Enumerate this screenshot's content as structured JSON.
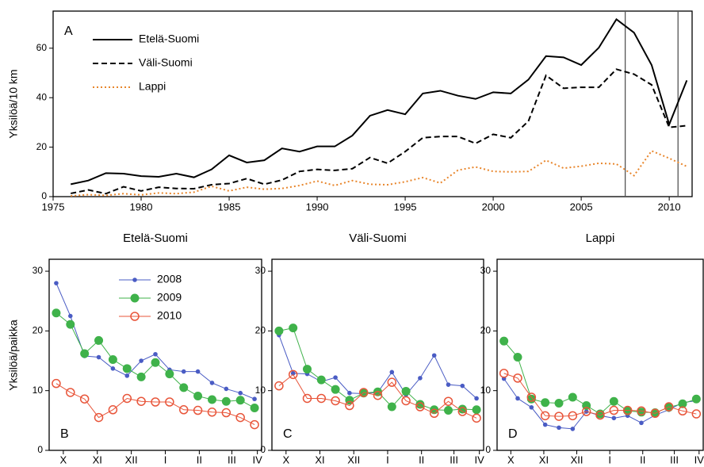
{
  "chart_data": [
    {
      "type": "line",
      "panel_label": "A",
      "y_label": "Yksilöä/10 km",
      "legend": "upper left",
      "x": [
        1976,
        1977,
        1978,
        1979,
        1980,
        1981,
        1982,
        1983,
        1984,
        1985,
        1986,
        1987,
        1988,
        1989,
        1990,
        1991,
        1992,
        1993,
        1994,
        1995,
        1996,
        1997,
        1998,
        1999,
        2000,
        2001,
        2002,
        2003,
        2004,
        2005,
        2006,
        2007,
        2008,
        2009,
        2010,
        2011
      ],
      "xlim": [
        1975,
        2011.3
      ],
      "xticks": [
        1975,
        1980,
        1985,
        1990,
        1995,
        2000,
        2005,
        2010
      ],
      "ylim": [
        0,
        75
      ],
      "yticks": [
        0,
        20,
        40,
        60
      ],
      "vlines": [
        2007.5,
        2010.5
      ],
      "series": [
        {
          "name": "Etelä-Suomi",
          "color": "#000000",
          "dash": "solid",
          "values": [
            5,
            6.5,
            9.5,
            9.3,
            8.3,
            8,
            9.3,
            7.8,
            11,
            16.7,
            13.8,
            14.7,
            19.5,
            18.2,
            20.3,
            20.3,
            24.7,
            32.7,
            35,
            33.3,
            41.7,
            42.8,
            40.8,
            39.5,
            42.2,
            41.7,
            47.3,
            56.8,
            56.3,
            53.2,
            60.2,
            71.7,
            66.3,
            53.2,
            29.2,
            47
          ]
        },
        {
          "name": "Väli-Suomi",
          "color": "#000000",
          "dash": "dashed",
          "values": [
            1.3,
            2.7,
            1.2,
            4,
            2.3,
            3.8,
            3.3,
            3.2,
            4.8,
            5.3,
            7.3,
            5,
            6.7,
            10.2,
            11,
            10.6,
            11.3,
            15.8,
            13.5,
            18.2,
            23.8,
            24.3,
            24.3,
            21.5,
            25.2,
            23.8,
            30.5,
            49,
            43.8,
            44.2,
            44.2,
            51.5,
            49.5,
            45.2,
            28,
            28.7
          ]
        },
        {
          "name": "Lappi",
          "color": "#e8862c",
          "dash": "dotted",
          "values": [
            0.3,
            0.8,
            0.5,
            1.2,
            0.7,
            1.5,
            1.2,
            1.8,
            4.2,
            2.3,
            3.8,
            3,
            3.3,
            4.5,
            6.3,
            4.5,
            6.5,
            5,
            4.8,
            6,
            7.7,
            5.5,
            10.7,
            12,
            10.2,
            10,
            10.2,
            14.7,
            11.5,
            12.3,
            13.5,
            13.2,
            8.5,
            18.5,
            15.5,
            12.2
          ]
        }
      ]
    },
    {
      "type": "line",
      "title": "Etelä-Suomi",
      "panel_label": "B",
      "y_label": "Yksilöä/paikka",
      "legend": "upper center",
      "x": [
        0,
        1,
        2,
        3,
        4,
        5,
        6,
        7,
        8,
        9,
        10,
        11,
        12,
        13,
        14
      ],
      "xlim": [
        -0.5,
        14.5
      ],
      "xticks": [
        {
          "value": 0.5,
          "label": "X"
        },
        {
          "value": 2.9,
          "label": "XI"
        },
        {
          "value": 5.3,
          "label": "XII"
        },
        {
          "value": 7.7,
          "label": "I"
        },
        {
          "value": 10.1,
          "label": "II"
        },
        {
          "value": 12.4,
          "label": "III"
        },
        {
          "value": 14.2,
          "label": "IV"
        }
      ],
      "ylim": [
        0,
        32
      ],
      "yticks": [
        0,
        10,
        20,
        30
      ],
      "series": [
        {
          "name": "2008",
          "color": "#4a5cc4",
          "marker": "dot",
          "values": [
            28,
            22.5,
            15.8,
            15.6,
            13.7,
            12.5,
            15,
            16.1,
            13.5,
            13.2,
            13.2,
            11.3,
            10.3,
            9.6,
            8.6
          ]
        },
        {
          "name": "2009",
          "color": "#3fb24a",
          "marker": "filled",
          "values": [
            23,
            21.1,
            16.2,
            18.4,
            15.2,
            13.7,
            12.3,
            14.7,
            12.8,
            10.5,
            9.1,
            8.5,
            8.2,
            8.4,
            7.1
          ]
        },
        {
          "name": "2010",
          "color": "#e8553a",
          "marker": "hollow",
          "values": [
            11.2,
            9.7,
            8.6,
            5.5,
            6.8,
            8.7,
            8.2,
            8.1,
            8.1,
            6.8,
            6.7,
            6.4,
            6.3,
            5.5,
            4.3
          ]
        }
      ]
    },
    {
      "type": "line",
      "title": "Väli-Suomi",
      "panel_label": "C",
      "x": [
        0,
        1,
        2,
        3,
        4,
        5,
        6,
        7,
        8,
        9,
        10,
        11,
        12,
        13,
        14
      ],
      "xlim": [
        -0.5,
        14.5
      ],
      "xticks": [
        {
          "value": 0.5,
          "label": "X"
        },
        {
          "value": 2.9,
          "label": "XI"
        },
        {
          "value": 5.3,
          "label": "XII"
        },
        {
          "value": 7.7,
          "label": "I"
        },
        {
          "value": 10.1,
          "label": "II"
        },
        {
          "value": 12.4,
          "label": "III"
        },
        {
          "value": 14.2,
          "label": "IV"
        }
      ],
      "ylim": [
        0,
        32
      ],
      "yticks": [
        0,
        10,
        20,
        30
      ],
      "series": [
        {
          "color": "#4a5cc4",
          "marker": "dot",
          "values": [
            19.3,
            12.9,
            12.8,
            11.5,
            12.2,
            9.6,
            9.5,
            9.7,
            13.1,
            9.3,
            12.1,
            15.9,
            11,
            10.8,
            8.7
          ]
        },
        {
          "color": "#3fb24a",
          "marker": "filled",
          "values": [
            20,
            20.5,
            13.6,
            11.8,
            10.2,
            8.4,
            9.6,
            9.8,
            7.3,
            9.9,
            7.7,
            6.8,
            6.7,
            6.9,
            6.8
          ]
        },
        {
          "color": "#e8553a",
          "marker": "hollow",
          "values": [
            10.8,
            12.7,
            8.7,
            8.7,
            8.3,
            7.5,
            9.7,
            9.2,
            11.4,
            8.3,
            7.3,
            6.2,
            8.2,
            6.5,
            5.4
          ]
        }
      ]
    },
    {
      "type": "line",
      "title": "Lappi",
      "panel_label": "D",
      "x": [
        0,
        1,
        2,
        3,
        4,
        5,
        6,
        7,
        8,
        9,
        10,
        11,
        12,
        13,
        14
      ],
      "xlim": [
        -0.5,
        14.5
      ],
      "xticks": [
        {
          "value": 0.5,
          "label": "X"
        },
        {
          "value": 2.9,
          "label": "XI"
        },
        {
          "value": 5.3,
          "label": "XII"
        },
        {
          "value": 7.7,
          "label": "I"
        },
        {
          "value": 10.1,
          "label": "II"
        },
        {
          "value": 12.4,
          "label": "III"
        },
        {
          "value": 14.2,
          "label": "IV"
        }
      ],
      "ylim": [
        0,
        32
      ],
      "yticks": [
        0,
        10,
        20,
        30
      ],
      "series": [
        {
          "color": "#4a5cc4",
          "marker": "dot",
          "values": [
            12,
            8.7,
            7.2,
            4.3,
            3.8,
            3.6,
            6.5,
            5.8,
            5.4,
            5.8,
            4.6,
            5.9,
            6.8,
            8,
            8.3
          ]
        },
        {
          "color": "#3fb24a",
          "marker": "filled",
          "values": [
            18.3,
            15.6,
            8.6,
            8,
            7.9,
            8.9,
            7.5,
            6.1,
            8.2,
            6.6,
            6.4,
            6.3,
            7.2,
            7.8,
            8.6
          ]
        },
        {
          "color": "#e8553a",
          "marker": "hollow",
          "values": [
            12.9,
            12.1,
            8.9,
            5.8,
            5.7,
            5.8,
            6.5,
            5.9,
            6.7,
            6.7,
            6.6,
            6.2,
            7.3,
            6.6,
            6.1
          ]
        }
      ]
    }
  ]
}
